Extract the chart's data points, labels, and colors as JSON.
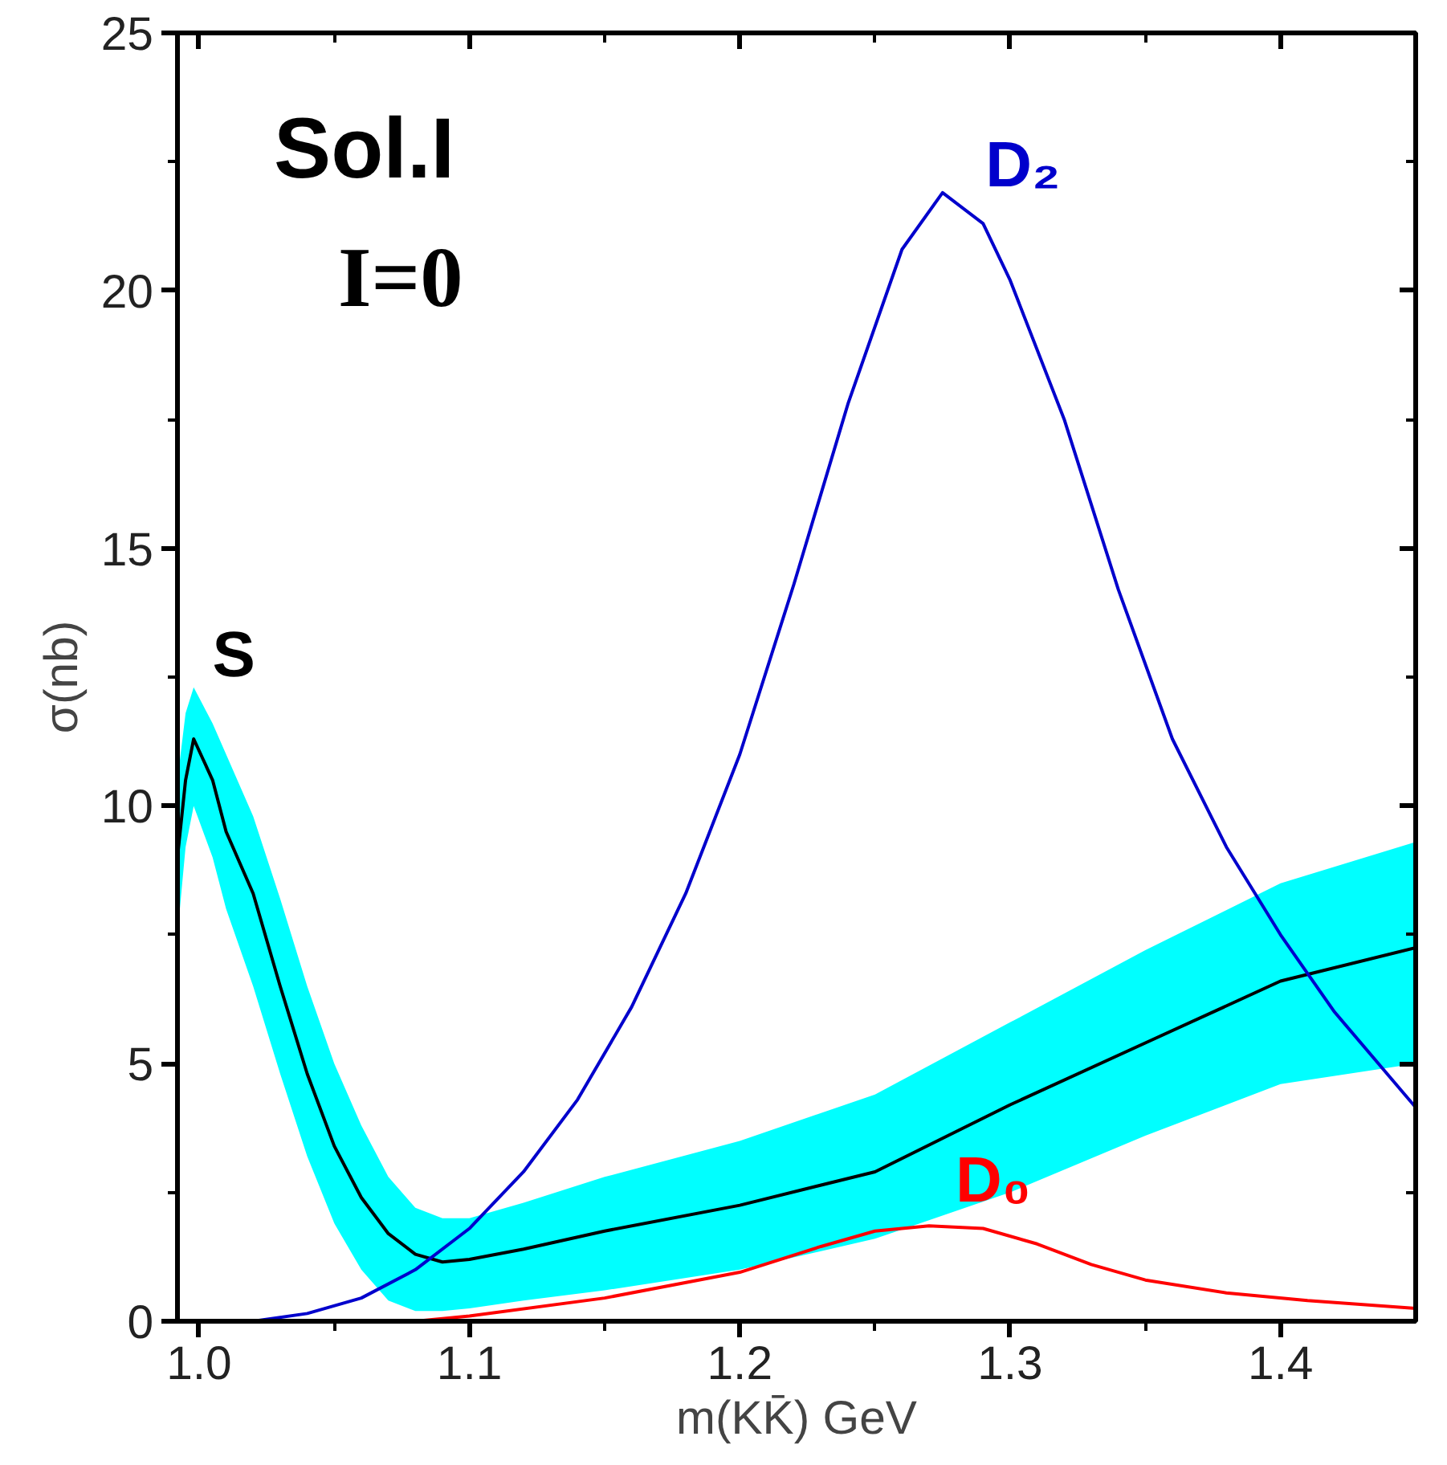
{
  "chart_data": {
    "type": "line",
    "xlabel": "m(KK̄) GeV",
    "ylabel": "σ(nb)",
    "xlim": [
      0.992,
      1.45
    ],
    "ylim": [
      0,
      25
    ],
    "xticks": [
      {
        "value": 1.0,
        "label": "1.0"
      },
      1.1,
      1.2,
      1.3,
      1.4
    ],
    "yticks": [
      0,
      5,
      10,
      15,
      20,
      25
    ],
    "grid": false,
    "annotations": [
      "Sol.I",
      "I=0"
    ],
    "series": [
      {
        "name": "S",
        "color": "#000000",
        "x": [
          0.992,
          0.995,
          0.998,
          1.005,
          1.01,
          1.02,
          1.03,
          1.04,
          1.05,
          1.06,
          1.07,
          1.08,
          1.09,
          1.1,
          1.12,
          1.15,
          1.2,
          1.25,
          1.3,
          1.35,
          1.4,
          1.45
        ],
        "values": [
          9,
          10.5,
          11.3,
          10.5,
          9.5,
          8.3,
          6.5,
          4.8,
          3.4,
          2.4,
          1.7,
          1.3,
          1.15,
          1.2,
          1.4,
          1.75,
          2.25,
          2.9,
          4.2,
          5.4,
          6.6,
          7.25
        ],
        "upper": [
          10.5,
          11.8,
          12.3,
          11.6,
          11,
          9.8,
          8.2,
          6.5,
          5,
          3.8,
          2.8,
          2.2,
          2.0,
          2.0,
          2.3,
          2.8,
          3.5,
          4.4,
          5.8,
          7.2,
          8.5,
          9.3
        ],
        "lower": [
          7.5,
          9.2,
          10,
          9,
          8,
          6.5,
          4.8,
          3.2,
          1.9,
          1.0,
          0.4,
          0.2,
          0.2,
          0.25,
          0.4,
          0.6,
          1.0,
          1.6,
          2.5,
          3.6,
          4.6,
          5.0
        ]
      },
      {
        "name": "D₂",
        "color": "#0000cc",
        "x": [
          1.02,
          1.04,
          1.06,
          1.08,
          1.1,
          1.12,
          1.14,
          1.16,
          1.18,
          1.2,
          1.22,
          1.24,
          1.26,
          1.275,
          1.29,
          1.3,
          1.32,
          1.34,
          1.36,
          1.38,
          1.4,
          1.42,
          1.45
        ],
        "values": [
          0,
          0.15,
          0.45,
          1.0,
          1.8,
          2.9,
          4.3,
          6.1,
          8.3,
          11,
          14.3,
          17.8,
          20.8,
          21.9,
          21.3,
          20.2,
          17.5,
          14.2,
          11.3,
          9.2,
          7.5,
          6.0,
          4.15
        ]
      },
      {
        "name": "D₀",
        "color": "#ff0000",
        "x": [
          1.08,
          1.1,
          1.15,
          1.2,
          1.23,
          1.25,
          1.27,
          1.29,
          1.31,
          1.33,
          1.35,
          1.38,
          1.41,
          1.45
        ],
        "values": [
          0,
          0.1,
          0.45,
          0.95,
          1.45,
          1.75,
          1.85,
          1.8,
          1.5,
          1.1,
          0.8,
          0.55,
          0.4,
          0.25
        ]
      }
    ]
  }
}
